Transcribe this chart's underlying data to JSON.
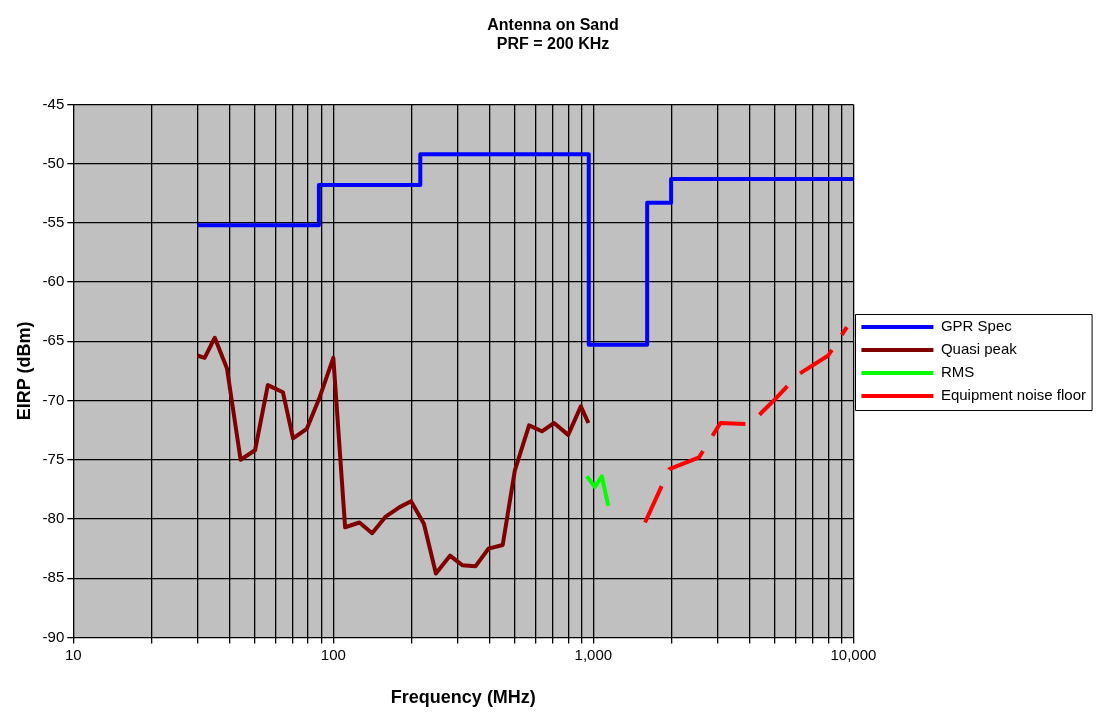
{
  "chart_data": {
    "type": "line",
    "title": "Antenna on Sand",
    "subtitle": "PRF = 200 KHz",
    "xlabel": "Frequency (MHz)",
    "ylabel": "EIRP (dBm)",
    "log": "x",
    "grid": true,
    "legend": "right",
    "marker": "none",
    "xlim": [
      10,
      10000
    ],
    "xticks": [
      10,
      {
        "value": 20,
        "label": null
      },
      {
        "value": 30,
        "label": null
      },
      {
        "value": 40,
        "label": null
      },
      {
        "value": 50,
        "label": null
      },
      {
        "value": 60,
        "label": null
      },
      {
        "value": 70,
        "label": null
      },
      {
        "value": 80,
        "label": null
      },
      {
        "value": 90,
        "label": null
      },
      100,
      {
        "value": 200,
        "label": null
      },
      {
        "value": 300,
        "label": null
      },
      {
        "value": 400,
        "label": null
      },
      {
        "value": 500,
        "label": null
      },
      {
        "value": 600,
        "label": null
      },
      {
        "value": 700,
        "label": null
      },
      {
        "value": 800,
        "label": null
      },
      {
        "value": 900,
        "label": null
      },
      {
        "value": 1000,
        "label": "1,000"
      },
      {
        "value": 2000,
        "label": null
      },
      {
        "value": 3000,
        "label": null
      },
      {
        "value": 4000,
        "label": null
      },
      {
        "value": 5000,
        "label": null
      },
      {
        "value": 6000,
        "label": null
      },
      {
        "value": 7000,
        "label": null
      },
      {
        "value": 8000,
        "label": null
      },
      {
        "value": 9000,
        "label": null
      },
      {
        "value": 10000,
        "label": "10,000"
      }
    ],
    "ylim": [
      -90,
      -45
    ],
    "yticks": [
      -90,
      -85,
      -80,
      -75,
      -70,
      -65,
      -60,
      -55,
      -50,
      -45
    ],
    "series": [
      {
        "name": "GPR Spec",
        "color": "#0000ff",
        "line_style": "solid",
        "x": [
          30,
          88,
          88,
          216,
          216,
          960,
          960,
          1610,
          1610,
          1990,
          1990,
          10000
        ],
        "values": [
          -55.2,
          -55.2,
          -51.8,
          -51.8,
          -49.2,
          -49.2,
          -65.3,
          -65.3,
          -53.3,
          -53.3,
          -51.3,
          -51.3
        ]
      },
      {
        "name": "Quasi peak",
        "color": "#800000",
        "line_style": "solid",
        "x": [
          30,
          32,
          35,
          39,
          44,
          50,
          56,
          64,
          70,
          79,
          88,
          100,
          111,
          126,
          141,
          159,
          180,
          199,
          223,
          248,
          281,
          313,
          352,
          395,
          448,
          499,
          566,
          634,
          706,
          800,
          895,
          957
        ],
        "values": [
          -66.2,
          -66.4,
          -64.7,
          -67.3,
          -75.0,
          -74.2,
          -68.7,
          -69.3,
          -73.2,
          -72.4,
          -69.9,
          -66.4,
          -80.7,
          -80.3,
          -81.2,
          -79.8,
          -79.0,
          -78.5,
          -80.4,
          -84.6,
          -83.1,
          -83.9,
          -84.0,
          -82.5,
          -82.2,
          -75.9,
          -72.1,
          -72.6,
          -71.9,
          -72.9,
          -70.5,
          -71.9
        ]
      },
      {
        "name": "RMS",
        "color": "#00ff00",
        "line_style": "solid",
        "x": [
          944,
          1014,
          1078,
          1141
        ],
        "values": [
          -76.4,
          -77.3,
          -76.4,
          -78.9
        ]
      },
      {
        "name": "Equipment noise floor",
        "color": "#ff0000",
        "line_style": "dashed",
        "x": [
          1580,
          1960,
          2550,
          3080,
          4000,
          4990,
          6140,
          8000,
          9440
        ],
        "values": [
          -80.3,
          -75.8,
          -74.8,
          -71.9,
          -72.0,
          -69.9,
          -67.8,
          -66.2,
          -63.8
        ]
      }
    ]
  }
}
